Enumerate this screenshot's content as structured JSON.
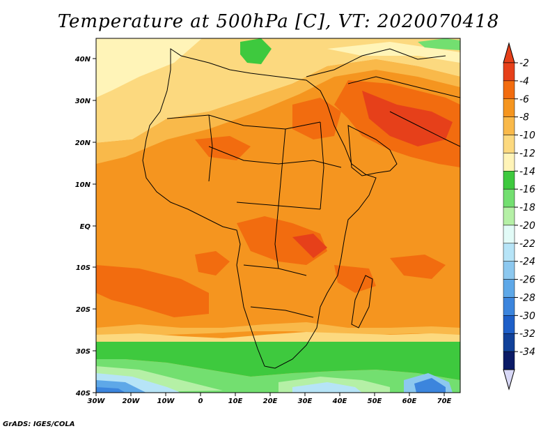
{
  "title": "Temperature at 500hPa [C], VT: 2020070418",
  "credit": "GrADS: IGES/COLA",
  "axes": {
    "lon_ticks": [
      "30W",
      "20W",
      "10W",
      "0",
      "10E",
      "20E",
      "30E",
      "40E",
      "50E",
      "60E",
      "70E"
    ],
    "lat_ticks": [
      "40S",
      "30S",
      "20S",
      "10S",
      "EQ",
      "10N",
      "20N",
      "30N",
      "40N"
    ]
  },
  "map": {
    "lon_range": [
      -30,
      75
    ],
    "lat_range": [
      -40,
      45
    ],
    "region": "Africa and Middle East",
    "variable": "temperature",
    "level": "500hPa"
  },
  "colorbar": {
    "labels": [
      "-2",
      "-4",
      "-6",
      "-8",
      "-10",
      "-12",
      "-14",
      "-16",
      "-18",
      "-20",
      "-22",
      "-24",
      "-26",
      "-28",
      "-30",
      "-32",
      "-34"
    ],
    "colors": [
      "#e6401a",
      "#f26c0f",
      "#f5951f",
      "#f9b94a",
      "#fcd97f",
      "#fff4b8",
      "#3ec93e",
      "#73df70",
      "#b5f0a6",
      "#e2fbf7",
      "#b6e4f7",
      "#8cc8ef",
      "#5ea8e8",
      "#3c85dd",
      "#1e5fc8",
      "#114199",
      "#0a1a66"
    ]
  }
}
